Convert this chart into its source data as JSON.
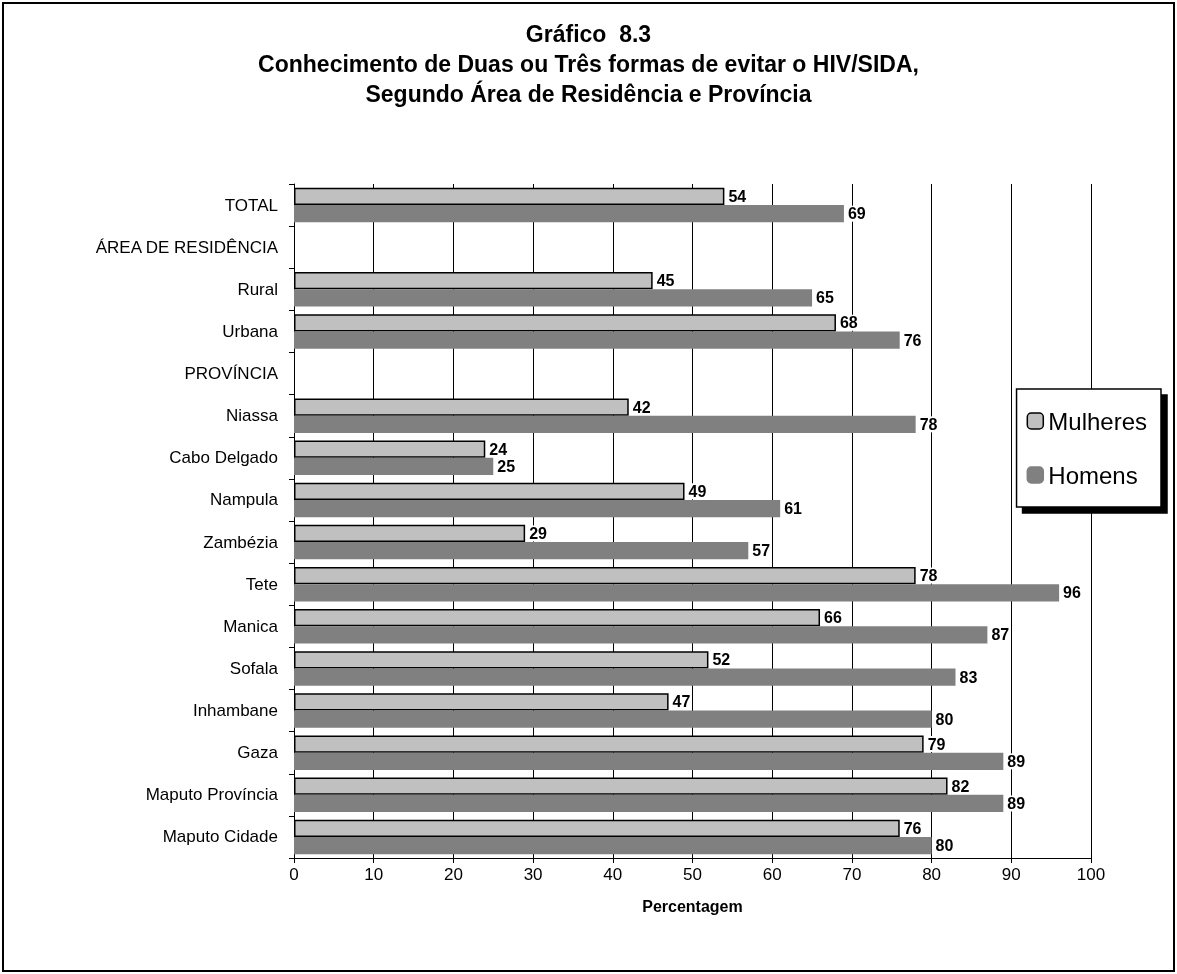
{
  "chart_data": {
    "type": "bar",
    "orientation": "horizontal",
    "title": "Gráfico  8.3\nConhecimento de Duas ou Três formas de evitar o HIV/SIDA,\nSegundo Área de Residência e Província",
    "xlabel": "Percentagem",
    "categories": [
      "TOTAL",
      "ÁREA DE RESIDÊNCIA",
      "Rural",
      "Urbana",
      "PROVÍNCIA",
      "Niassa",
      "Cabo Delgado",
      "Nampula",
      "Zambézia",
      "Tete",
      "Manica",
      "Sofala",
      "Inhambane",
      "Gaza",
      "Maputo Província",
      "Maputo Cidade"
    ],
    "series": [
      {
        "name": "Mulheres",
        "color": "#c0c0c0",
        "values": [
          54,
          null,
          45,
          68,
          null,
          42,
          24,
          49,
          29,
          78,
          66,
          52,
          47,
          79,
          82,
          76
        ]
      },
      {
        "name": "Homens",
        "color": "#808080",
        "values": [
          69,
          null,
          65,
          76,
          null,
          78,
          25,
          61,
          57,
          96,
          87,
          83,
          80,
          89,
          89,
          80
        ]
      }
    ],
    "xlim": [
      0,
      100
    ],
    "xticks": [
      0,
      10,
      20,
      30,
      40,
      50,
      60,
      70,
      80,
      90,
      100
    ],
    "grid": "x",
    "legend": "right",
    "data_labels": true
  }
}
